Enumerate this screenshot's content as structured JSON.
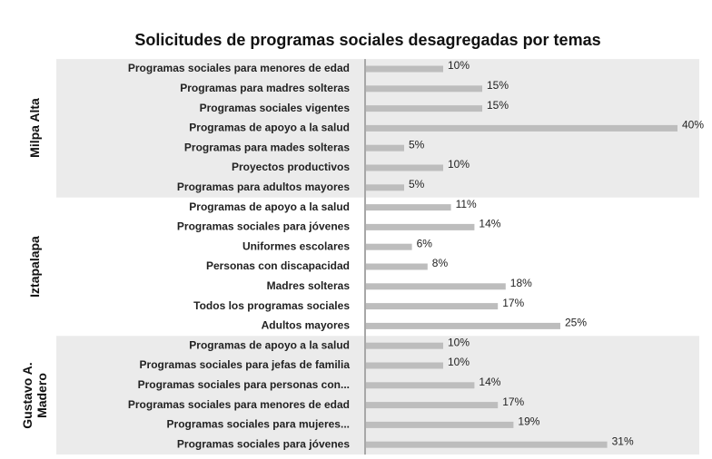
{
  "chart_data": {
    "type": "bar",
    "title": "Solicitudes de programas sociales desagregadas por temas",
    "color": "#bdbdbd",
    "xlim": [
      0,
      42
    ],
    "groups": [
      {
        "name": "Milpa Alta",
        "shaded": true,
        "categories": [
          "Programas sociales para menores de edad",
          "Programas para madres solteras",
          "Programas sociales vigentes",
          "Programas de apoyo a la salud",
          "Programas para mades solteras",
          "Proyectos productivos",
          "Programas para adultos mayores"
        ],
        "values": [
          10,
          15,
          15,
          40,
          5,
          10,
          5
        ],
        "value_labels": [
          "10%",
          "15%",
          "15%",
          "40%",
          "5%",
          "10%",
          "5%"
        ]
      },
      {
        "name": "Iztapalapa",
        "shaded": false,
        "categories": [
          "Programas de apoyo a la salud",
          "Programas sociales para jóvenes",
          "Uniformes escolares",
          "Personas con discapacidad",
          "Madres solteras",
          "Todos los programas sociales",
          "Adultos mayores"
        ],
        "values": [
          11,
          14,
          6,
          8,
          18,
          17,
          25
        ],
        "value_labels": [
          "11%",
          "14%",
          "6%",
          "8%",
          "18%",
          "17%",
          "25%"
        ]
      },
      {
        "name": "Gustavo A. Madero",
        "shaded": true,
        "categories": [
          "Programas de apoyo a la salud",
          "Programas sociales para jefas de familia",
          "Programas sociales para personas con...",
          "Programas sociales para menores de edad",
          "Programas sociales para mujeres...",
          "Programas sociales para jóvenes"
        ],
        "values": [
          10,
          10,
          14,
          17,
          19,
          31
        ],
        "value_labels": [
          "10%",
          "10%",
          "14%",
          "17%",
          "19%",
          "31%"
        ]
      }
    ]
  }
}
